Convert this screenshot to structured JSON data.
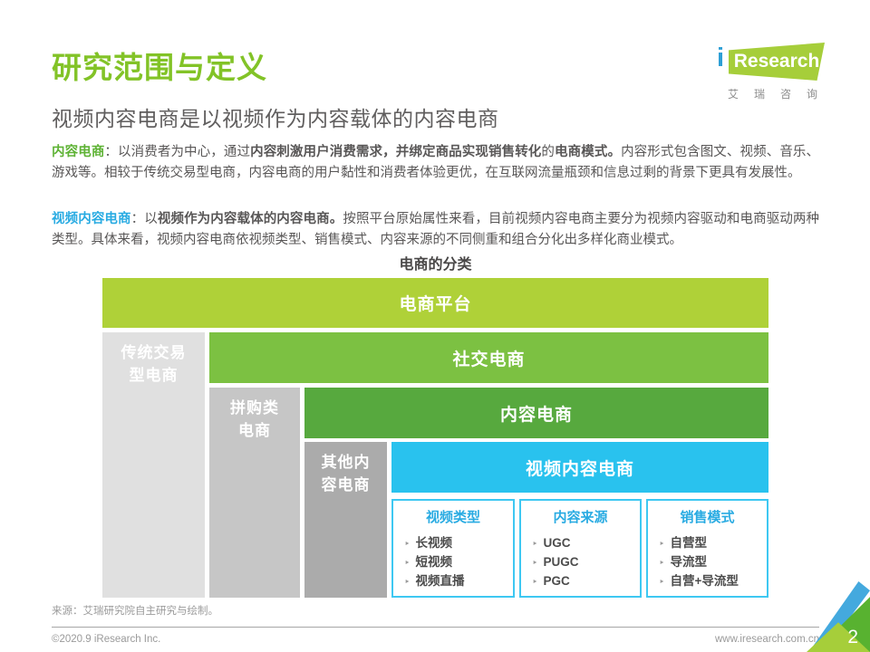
{
  "header": {
    "title": "研究范围与定义",
    "subtitle": "视频内容电商是以视频作为内容载体的内容电商"
  },
  "logo": {
    "i": "i",
    "brand": "Research",
    "caption": "艾瑞咨询"
  },
  "definitions": {
    "p1": {
      "label": "内容电商",
      "pre": "：以消费者为中心，通过",
      "bold1": "内容刺激用户消费需求，并绑定商品实现销售转化",
      "mid": "的",
      "bold2": "电商模式。",
      "rest": "内容形式包含图文、视频、音乐、游戏等。相较于传统交易型电商，内容电商的用户黏性和消费者体验更优，在互联网流量瓶颈和信息过剩的背景下更具有发展性。"
    },
    "p2": {
      "label": "视频内容电商",
      "pre": "：以",
      "bold1": "视频作为内容载体的内容电商。",
      "rest": "按照平台原始属性来看，目前视频内容电商主要分为视频内容驱动和电商驱动两种类型。具体来看，视频内容电商依视频类型、销售模式、内容来源的不同侧重和组合分化出多样化商业模式。"
    }
  },
  "diagram": {
    "title": "电商的分类",
    "bullet": "‣",
    "levels": [
      {
        "label": "电商平台",
        "color": "#afd138"
      },
      {
        "label": "社交电商",
        "color": "#7cc142"
      },
      {
        "label": "内容电商",
        "color": "#57a93e"
      },
      {
        "label": "视频内容电商",
        "color": "#29c2ee"
      }
    ],
    "side_labels": [
      {
        "label": "传统交易型电商",
        "color": "#e0e0e0"
      },
      {
        "label": "拼购类电商",
        "color": "#c6c6c6"
      },
      {
        "label": "其他内容电商",
        "color": "#ababab"
      }
    ],
    "boxes": [
      {
        "title": "视频类型",
        "items": [
          "长视频",
          "短视频",
          "视频直播"
        ]
      },
      {
        "title": "内容来源",
        "items": [
          "UGC",
          "PUGC",
          "PGC"
        ]
      },
      {
        "title": "销售模式",
        "items": [
          "自营型",
          "导流型",
          "自营+导流型"
        ]
      }
    ]
  },
  "footer": {
    "source": "来源：艾瑞研究院自主研究与绘制。",
    "copyright": "©2020.9 iResearch Inc.",
    "website": "www.iresearch.com.cn",
    "page_number": "2"
  },
  "colors": {
    "title_green": "#82c327",
    "term_green": "#5fb336",
    "term_cyan": "#29abe2",
    "box_border_cyan": "#3ec8f2",
    "body_text": "#595757",
    "logo_green": "#a6ce3a",
    "logo_blue": "#2d9fd5"
  }
}
